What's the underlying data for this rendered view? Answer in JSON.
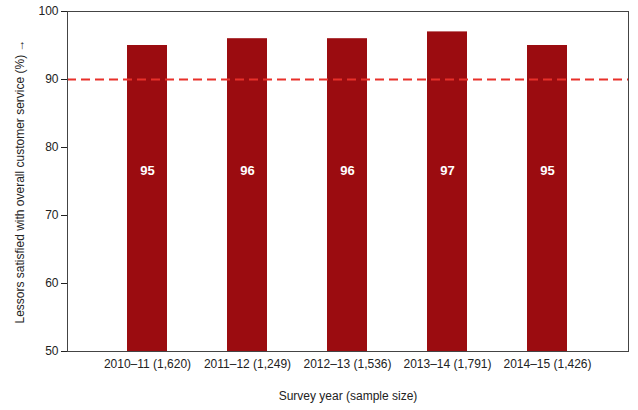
{
  "chart_data": {
    "type": "bar",
    "categories": [
      "2010–11 (1,620)",
      "2011–12 (1,249)",
      "2012–13 (1,536)",
      "2013–14 (1,791)",
      "2014–15 (1,426)"
    ],
    "values": [
      95,
      96,
      96,
      97,
      95
    ],
    "color": "#9b0c10",
    "x_label": "Survey year (sample size)",
    "y_label": "Lessors satisfied with overall customer service (%)",
    "ylim": [
      50,
      100
    ],
    "yticks": [
      50,
      60,
      70,
      80,
      90,
      100
    ],
    "grid": false,
    "data_labels": true,
    "reference_line": 90
  }
}
